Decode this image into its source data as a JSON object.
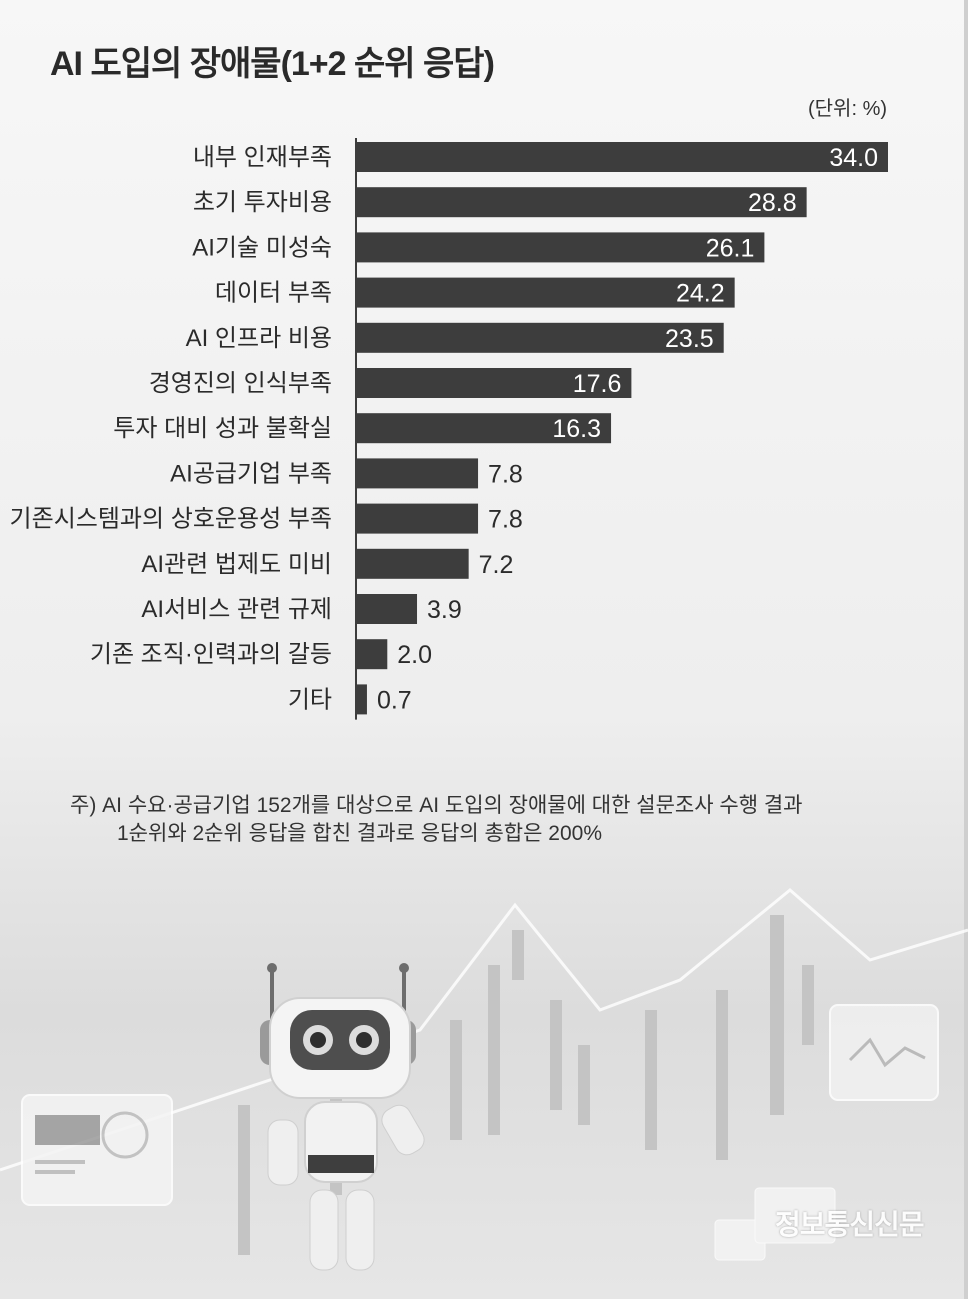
{
  "title": "AI 도입의 장애물(1+2 순위 응답)",
  "unit_label": "(단위: %)",
  "note": {
    "line1": "주) AI 수요·공급기업 152개를 대상으로 AI 도입의 장애물에 대한 설문조사 수행 결과",
    "line2": "1순위와 2순위 응답을 합친 결과로 응답의 총합은 200%"
  },
  "brand": "정보통신신문",
  "colors": {
    "bar": "#3d3d3d",
    "label_inside": "#ffffff",
    "label_outside": "#2b2b2b"
  },
  "chart_data": {
    "type": "bar",
    "orientation": "horizontal",
    "title": "AI 도입의 장애물(1+2 순위 응답)",
    "unit": "%",
    "categories": [
      "내부 인재부족",
      "초기 투자비용",
      "AI기술 미성숙",
      "데이터 부족",
      "AI 인프라 비용",
      "경영진의 인식부족",
      "투자 대비 성과 불확실",
      "AI공급기업 부족",
      "기존시스템과의 상호운용성 부족",
      "AI관련 법제도 미비",
      "AI서비스 관련 규제",
      "기존 조직·인력과의 갈등",
      "기타"
    ],
    "values": [
      34.0,
      28.8,
      26.1,
      24.2,
      23.5,
      17.6,
      16.3,
      7.8,
      7.8,
      7.2,
      3.9,
      2.0,
      0.7
    ],
    "value_labels": [
      "34.0",
      "28.8",
      "26.1",
      "24.2",
      "23.5",
      "17.6",
      "16.3",
      "7.8",
      "7.8",
      "7.2",
      "3.9",
      "2.0",
      "0.7"
    ],
    "xlim": [
      0,
      34.0
    ],
    "grid": false,
    "legend": "none"
  }
}
